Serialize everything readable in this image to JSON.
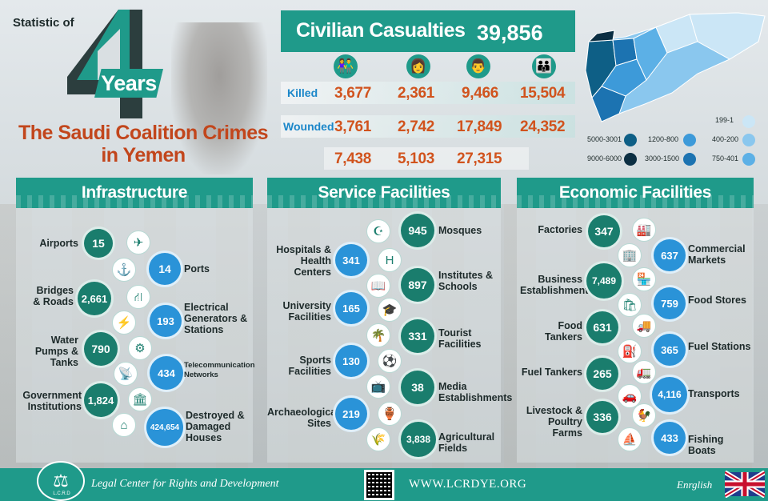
{
  "header": {
    "statistic_of": "Statistic of",
    "big_number": "4",
    "years": "Years",
    "title_line1": "The Saudi Coalition Crimes",
    "title_line2": "in Yemen"
  },
  "casualties": {
    "title": "Civilian Casualties",
    "total": "39,856",
    "icons": [
      "children-icon",
      "woman-icon",
      "man-icon",
      "family-icon"
    ],
    "killed_label": "Killed",
    "wounded_label": "Wounded",
    "killed": [
      "3,677",
      "2,361",
      "9,466",
      "15,504"
    ],
    "wounded": [
      "3,761",
      "2,742",
      "17,849",
      "24,352"
    ],
    "totals": [
      "7,438",
      "5,103",
      "27,315"
    ]
  },
  "map_legend": {
    "items": [
      {
        "label": "5000-3001",
        "color": "#0e5f86"
      },
      {
        "label": "1200-800",
        "color": "#3d9ad9"
      },
      {
        "label": "199-1",
        "color": "#cbe6f6"
      },
      {
        "label": "9000-6000",
        "color": "#0b2e42"
      },
      {
        "label": "3000-1500",
        "color": "#1c73b1"
      },
      {
        "label": "400-200",
        "color": "#8ac7ee"
      },
      {
        "label": "750-401",
        "color": "#5cb0e6"
      }
    ]
  },
  "sections": {
    "infrastructure": {
      "title": "Infrastructure",
      "items": [
        {
          "label": "Airports",
          "value": "15"
        },
        {
          "label": "Ports",
          "value": "14"
        },
        {
          "label": "Bridges & Roads",
          "value": "2,661"
        },
        {
          "label": "Electrical Generators & Stations",
          "value": "193"
        },
        {
          "label": "Water Pumps & Tanks",
          "value": "790"
        },
        {
          "label": "Telecommunication Networks",
          "value": "434"
        },
        {
          "label": "Government Institutions",
          "value": "1,824"
        },
        {
          "label": "Destroyed & Damaged Houses",
          "value": "424,654"
        }
      ]
    },
    "service": {
      "title": "Service Facilities",
      "items": [
        {
          "label": "Mosques",
          "value": "945"
        },
        {
          "label": "Hospitals & Health Centers",
          "value": "341"
        },
        {
          "label": "Institutes & Schools",
          "value": "897"
        },
        {
          "label": "University Facilities",
          "value": "165"
        },
        {
          "label": "Tourist Facilities",
          "value": "331"
        },
        {
          "label": "Sports Facilities",
          "value": "130"
        },
        {
          "label": "Media Establishments",
          "value": "38"
        },
        {
          "label": "Archaeological Sites",
          "value": "219"
        },
        {
          "label": "Agricultural Fields",
          "value": "3,838"
        }
      ]
    },
    "economic": {
      "title": "Economic Facilities",
      "items": [
        {
          "label": "Factories",
          "value": "347"
        },
        {
          "label": "Commercial Markets",
          "value": "637"
        },
        {
          "label": "Business Establishments",
          "value": "7,489"
        },
        {
          "label": "Food Stores",
          "value": "759"
        },
        {
          "label": "Food Tankers",
          "value": "631"
        },
        {
          "label": "Fuel Stations",
          "value": "365"
        },
        {
          "label": "Fuel Tankers",
          "value": "265"
        },
        {
          "label": "Transports",
          "value": "4,116"
        },
        {
          "label": "Livestock & Poultry Farms",
          "value": "336"
        },
        {
          "label": "Fishing Boats",
          "value": "433"
        }
      ]
    }
  },
  "footer": {
    "logo_text": "L.C.R.D",
    "organization": "Legal Center for Rights and Development",
    "url": "WWW.LCRDYE.ORG",
    "language": "Enrglish"
  },
  "colors": {
    "teal": "#1f9a8a",
    "dark_teal": "#1a7d6d",
    "blue": "#2a93d8",
    "orange": "#d1531d",
    "title_red": "#c2461c"
  }
}
